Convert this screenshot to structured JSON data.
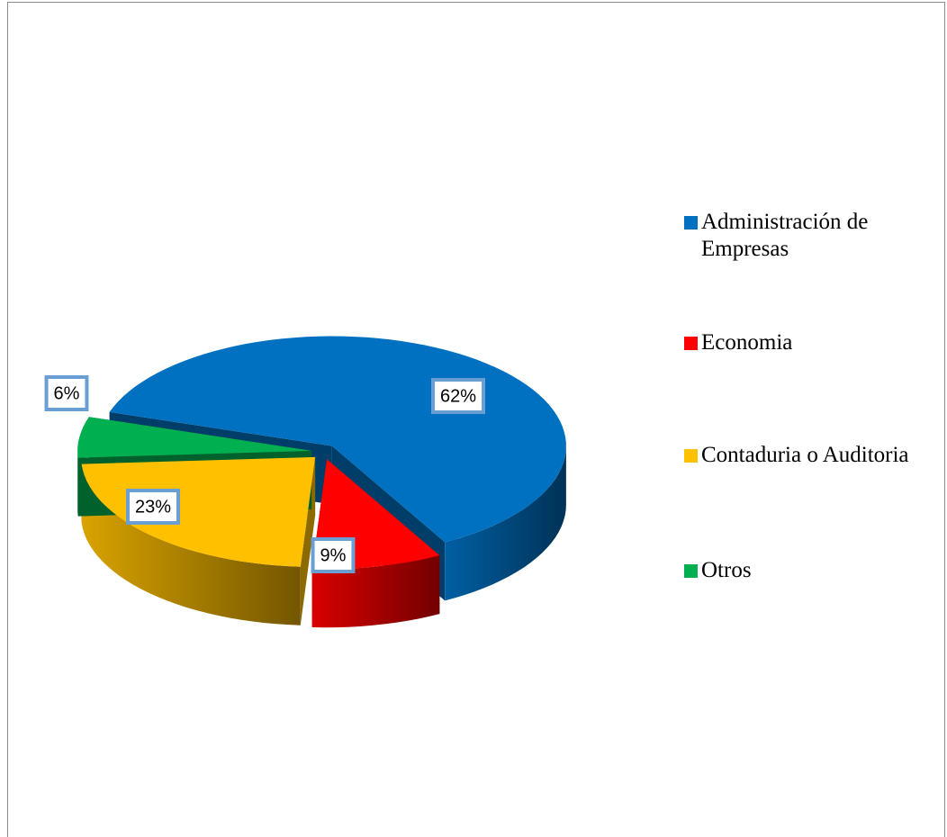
{
  "chart_data": {
    "type": "pie",
    "categories": [
      "Administración de Empresas",
      "Economia",
      "Contaduria o Auditoria",
      "Otros"
    ],
    "values": [
      62,
      9,
      23,
      6
    ],
    "value_labels": [
      "62%",
      "9%",
      "23%",
      "6%"
    ],
    "colors": [
      "#0070c0",
      "#ff0000",
      "#ffc000",
      "#00b050"
    ],
    "legend": "right"
  }
}
